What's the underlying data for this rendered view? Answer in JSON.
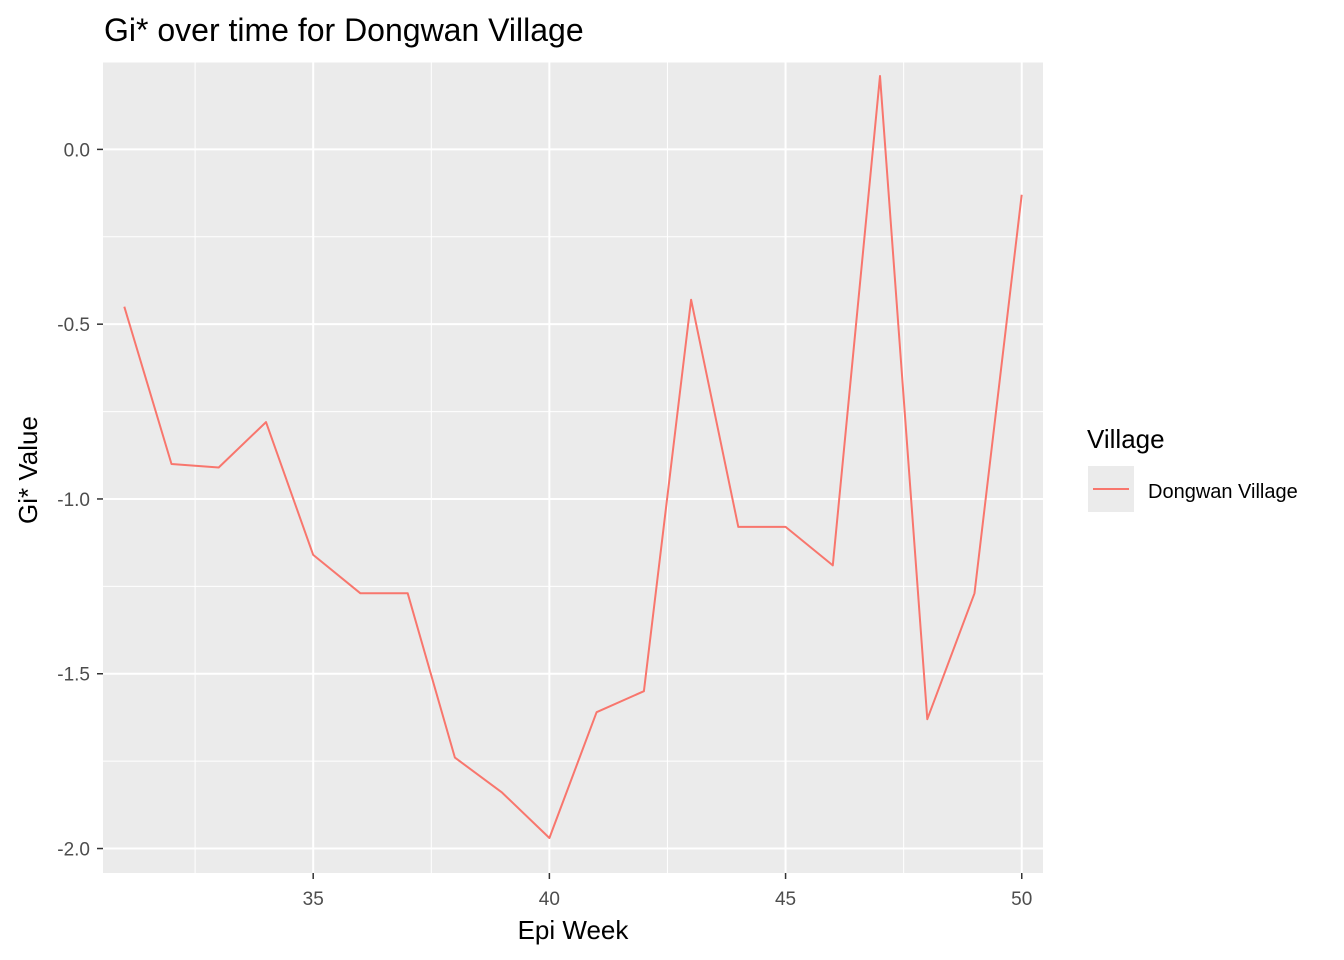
{
  "chart_data": {
    "type": "line",
    "title": "Gi* over time for Dongwan Village",
    "xlabel": "Epi Week",
    "ylabel": "Gi* Value",
    "xlim": [
      30.55,
      50.45
    ],
    "ylim": [
      -2.07,
      0.25
    ],
    "x_ticks": [
      35,
      40,
      45,
      50
    ],
    "x_tick_labels": [
      "35",
      "40",
      "45",
      "50"
    ],
    "y_ticks": [
      0.0,
      -0.5,
      -1.0,
      -1.5,
      -2.0
    ],
    "y_tick_labels": [
      "0.0",
      "-0.5",
      "-1.0",
      "-1.5",
      "-2.0"
    ],
    "grid": true,
    "legend": {
      "title": "Village",
      "position": "right"
    },
    "series": [
      {
        "name": "Dongwan Village",
        "color": "#F8766D",
        "x": [
          31,
          32,
          33,
          34,
          35,
          36,
          37,
          38,
          39,
          40,
          41,
          42,
          43,
          44,
          45,
          46,
          47,
          48,
          49,
          50
        ],
        "y": [
          -0.45,
          -0.9,
          -0.91,
          -0.78,
          -1.16,
          -1.27,
          -1.27,
          -1.74,
          -1.84,
          -1.97,
          -1.61,
          -1.55,
          -0.43,
          -1.08,
          -1.08,
          -1.19,
          0.21,
          -1.63,
          -1.27,
          -0.13
        ]
      }
    ]
  }
}
